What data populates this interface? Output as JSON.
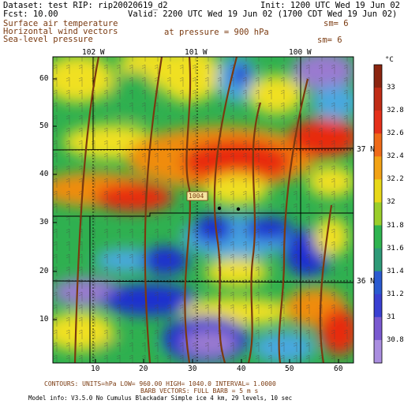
{
  "header": {
    "dataset": "Dataset: test  RIP: rip20020619_d2",
    "init": "Init: 1200 UTC Wed 19 Jun 02",
    "fcst": "Fcst:  10.00",
    "valid": "Valid: 2200 UTC Wed 19 Jun 02 (1700 CDT Wed 19 Jun 02)"
  },
  "fields": {
    "line1": "Surface air temperature",
    "line1_sm": "sm= 6",
    "line2": "Horizontal wind vectors",
    "line2_pressure": "at pressure =  900 hPa",
    "line3": "Sea-level pressure",
    "line3_sm": "sm= 6"
  },
  "map": {
    "longitude_labels": [
      "102 W",
      "101 W",
      "100 W"
    ],
    "latitude_labels": [
      "37 N",
      "36 N"
    ],
    "x_ticks": [
      "10",
      "20",
      "30",
      "40",
      "50",
      "60"
    ],
    "y_ticks": [
      "10",
      "20",
      "30",
      "40",
      "50",
      "60"
    ],
    "isobar_label": "1004",
    "colors": {
      "violet": "#9a7ad0",
      "blue": "#1f2fd0",
      "light_blue": "#4aa8e0",
      "green": "#2fb050",
      "yellow": "#f0e020",
      "orange": "#f08c10",
      "red": "#e82a10",
      "contour": "#7a3a10"
    }
  },
  "colorbar": {
    "unit": "°C",
    "labels": [
      "33",
      "32.8",
      "32.6",
      "32.4",
      "32.2",
      "32",
      "31.8",
      "31.6",
      "31.4",
      "31.2",
      "31",
      "30.8"
    ],
    "colors": [
      "#8b2510",
      "#c02c16",
      "#e5301a",
      "#ef6a18",
      "#f2a214",
      "#e8d818",
      "#9ace2a",
      "#2fb450",
      "#2e9a78",
      "#2a5ad0",
      "#3a40d2",
      "#7a5ad0",
      "#aa8ee0"
    ]
  },
  "footer": {
    "contours": "CONTOURS:  UNITS=hPa  LOW=  960.00     HIGH=  1040.0     INTERVAL=   1.0000",
    "barb": "BARB VECTORS:  FULL BARB = 5 m s",
    "model_info": "Model info: V3.5.0 No Cumulus Blackadar  Simple ice    4 km,  29 levels,   10 sec"
  }
}
